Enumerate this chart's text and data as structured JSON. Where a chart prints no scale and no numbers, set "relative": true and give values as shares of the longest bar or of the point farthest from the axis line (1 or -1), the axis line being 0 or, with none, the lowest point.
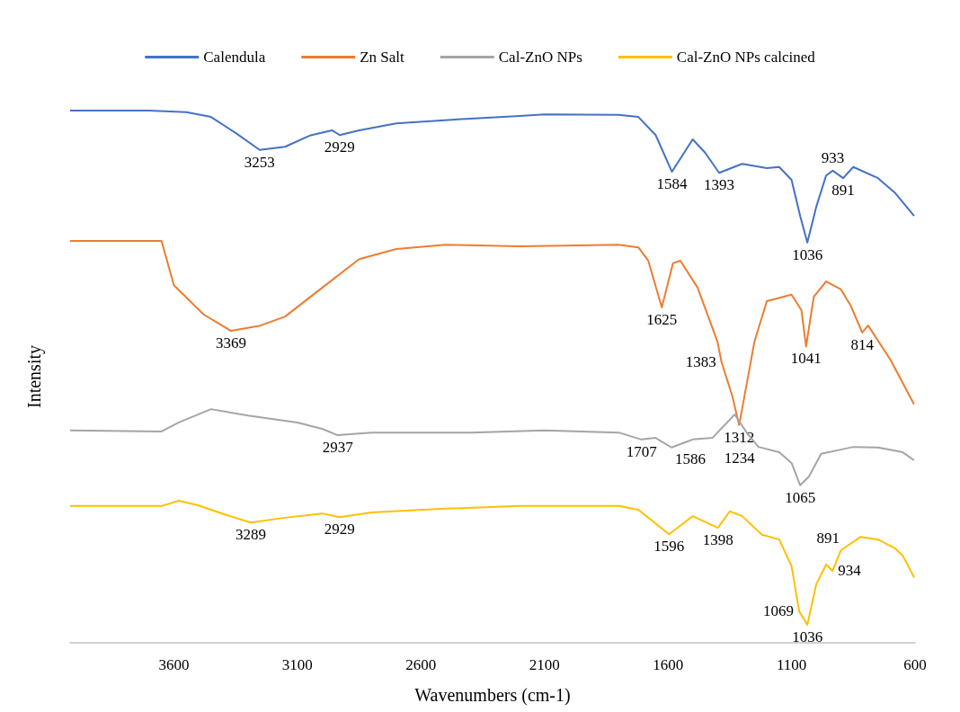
{
  "chart_data": {
    "type": "line",
    "relative": true,
    "xlabel": "Wavenumbers (cm-1)",
    "ylabel": "Intensity",
    "xlim": [
      4020,
      600
    ],
    "xticks": [
      3600,
      3100,
      2600,
      2100,
      1600,
      1100,
      600
    ],
    "legend": "top",
    "grid": false,
    "series": [
      {
        "name": "Calendula",
        "color": "#4472c4",
        "x": [
          4020,
          3700,
          3550,
          3450,
          3350,
          3253,
          3150,
          3050,
          2960,
          2929,
          2850,
          2700,
          2400,
          2200,
          2100,
          1800,
          1720,
          1650,
          1584,
          1500,
          1450,
          1393,
          1300,
          1200,
          1150,
          1100,
          1065,
          1036,
          1000,
          960,
          933,
          891,
          850,
          750,
          680,
          604
        ],
        "values": [
          1,
          1,
          0.997,
          0.988,
          0.958,
          0.926,
          0.932,
          0.953,
          0.963,
          0.954,
          0.963,
          0.976,
          0.985,
          0.99,
          0.993,
          0.992,
          0.988,
          0.954,
          0.885,
          0.946,
          0.921,
          0.883,
          0.9,
          0.892,
          0.894,
          0.87,
          0.802,
          0.752,
          0.819,
          0.878,
          0.887,
          0.873,
          0.894,
          0.873,
          0.845,
          0.802
        ]
      },
      {
        "name": "Zn Salt",
        "color": "#ed7d31",
        "x": [
          4020,
          3650,
          3600,
          3480,
          3369,
          3250,
          3150,
          3000,
          2850,
          2700,
          2500,
          2200,
          1800,
          1720,
          1680,
          1625,
          1580,
          1550,
          1480,
          1400,
          1383,
          1340,
          1312,
          1250,
          1200,
          1100,
          1060,
          1041,
          1010,
          960,
          900,
          860,
          814,
          790,
          700,
          604
        ],
        "values": [
          0.755,
          0.755,
          0.672,
          0.617,
          0.586,
          0.596,
          0.613,
          0.667,
          0.721,
          0.74,
          0.748,
          0.745,
          0.748,
          0.743,
          0.718,
          0.63,
          0.713,
          0.718,
          0.667,
          0.566,
          0.527,
          0.464,
          0.409,
          0.566,
          0.642,
          0.654,
          0.625,
          0.557,
          0.65,
          0.679,
          0.664,
          0.633,
          0.583,
          0.596,
          0.532,
          0.448
        ]
      },
      {
        "name": "Cal-ZnO NPs",
        "color": "#a5a5a5",
        "x": [
          4020,
          3650,
          3580,
          3450,
          3300,
          3100,
          3000,
          2937,
          2800,
          2400,
          2100,
          1800,
          1707,
          1650,
          1586,
          1500,
          1420,
          1330,
          1280,
          1234,
          1150,
          1100,
          1065,
          1030,
          980,
          900,
          850,
          750,
          650,
          604
        ],
        "values": [
          0.399,
          0.397,
          0.414,
          0.439,
          0.427,
          0.414,
          0.402,
          0.39,
          0.395,
          0.395,
          0.399,
          0.395,
          0.382,
          0.385,
          0.367,
          0.382,
          0.385,
          0.429,
          0.394,
          0.368,
          0.358,
          0.338,
          0.296,
          0.312,
          0.355,
          0.363,
          0.368,
          0.367,
          0.358,
          0.343
        ]
      },
      {
        "name": "Cal-ZnO NPs calcined",
        "color": "#ffc000",
        "x": [
          4020,
          3650,
          3580,
          3500,
          3400,
          3289,
          3150,
          3000,
          2929,
          2800,
          2500,
          2200,
          1800,
          1720,
          1596,
          1500,
          1398,
          1350,
          1300,
          1220,
          1150,
          1100,
          1069,
          1036,
          1000,
          960,
          934,
          900,
          820,
          750,
          680,
          650,
          604
        ],
        "values": [
          0.257,
          0.257,
          0.267,
          0.258,
          0.242,
          0.226,
          0.235,
          0.243,
          0.236,
          0.245,
          0.252,
          0.257,
          0.257,
          0.25,
          0.204,
          0.238,
          0.216,
          0.247,
          0.238,
          0.203,
          0.194,
          0.144,
          0.059,
          0.034,
          0.11,
          0.147,
          0.135,
          0.174,
          0.199,
          0.194,
          0.177,
          0.164,
          0.123
        ]
      }
    ],
    "annotations": [
      {
        "text": "3253",
        "x": 3253,
        "y": 0.926
      },
      {
        "text": "2929",
        "x": 2929,
        "y": 0.954
      },
      {
        "text": "1584",
        "x": 1584,
        "y": 0.885
      },
      {
        "text": "1393",
        "x": 1393,
        "y": 0.883
      },
      {
        "text": "933",
        "x": 933,
        "y": 0.887
      },
      {
        "text": "891",
        "x": 891,
        "y": 0.873
      },
      {
        "text": "1036",
        "x": 1036,
        "y": 0.752
      },
      {
        "text": "3369",
        "x": 3369,
        "y": 0.586
      },
      {
        "text": "1625",
        "x": 1625,
        "y": 0.63
      },
      {
        "text": "1383",
        "x": 1383,
        "y": 0.527
      },
      {
        "text": "1312",
        "x": 1312,
        "y": 0.409
      },
      {
        "text": "1041",
        "x": 1041,
        "y": 0.557
      },
      {
        "text": "814",
        "x": 814,
        "y": 0.583
      },
      {
        "text": "2937",
        "x": 2937,
        "y": 0.39
      },
      {
        "text": "1707",
        "x": 1707,
        "y": 0.382
      },
      {
        "text": "1586",
        "x": 1586,
        "y": 0.367
      },
      {
        "text": "1234",
        "x": 1234,
        "y": 0.368
      },
      {
        "text": "1065",
        "x": 1065,
        "y": 0.296
      },
      {
        "text": "3289",
        "x": 3289,
        "y": 0.226
      },
      {
        "text": "2929",
        "x": 2929,
        "y": 0.236
      },
      {
        "text": "1596",
        "x": 1596,
        "y": 0.204
      },
      {
        "text": "1398",
        "x": 1398,
        "y": 0.216
      },
      {
        "text": "1036",
        "x": 1036,
        "y": 0.034
      },
      {
        "text": "1069",
        "x": 1069,
        "y": 0.059
      },
      {
        "text": "934",
        "x": 934,
        "y": 0.135
      },
      {
        "text": "891",
        "x": 891,
        "y": 0.174
      }
    ]
  }
}
